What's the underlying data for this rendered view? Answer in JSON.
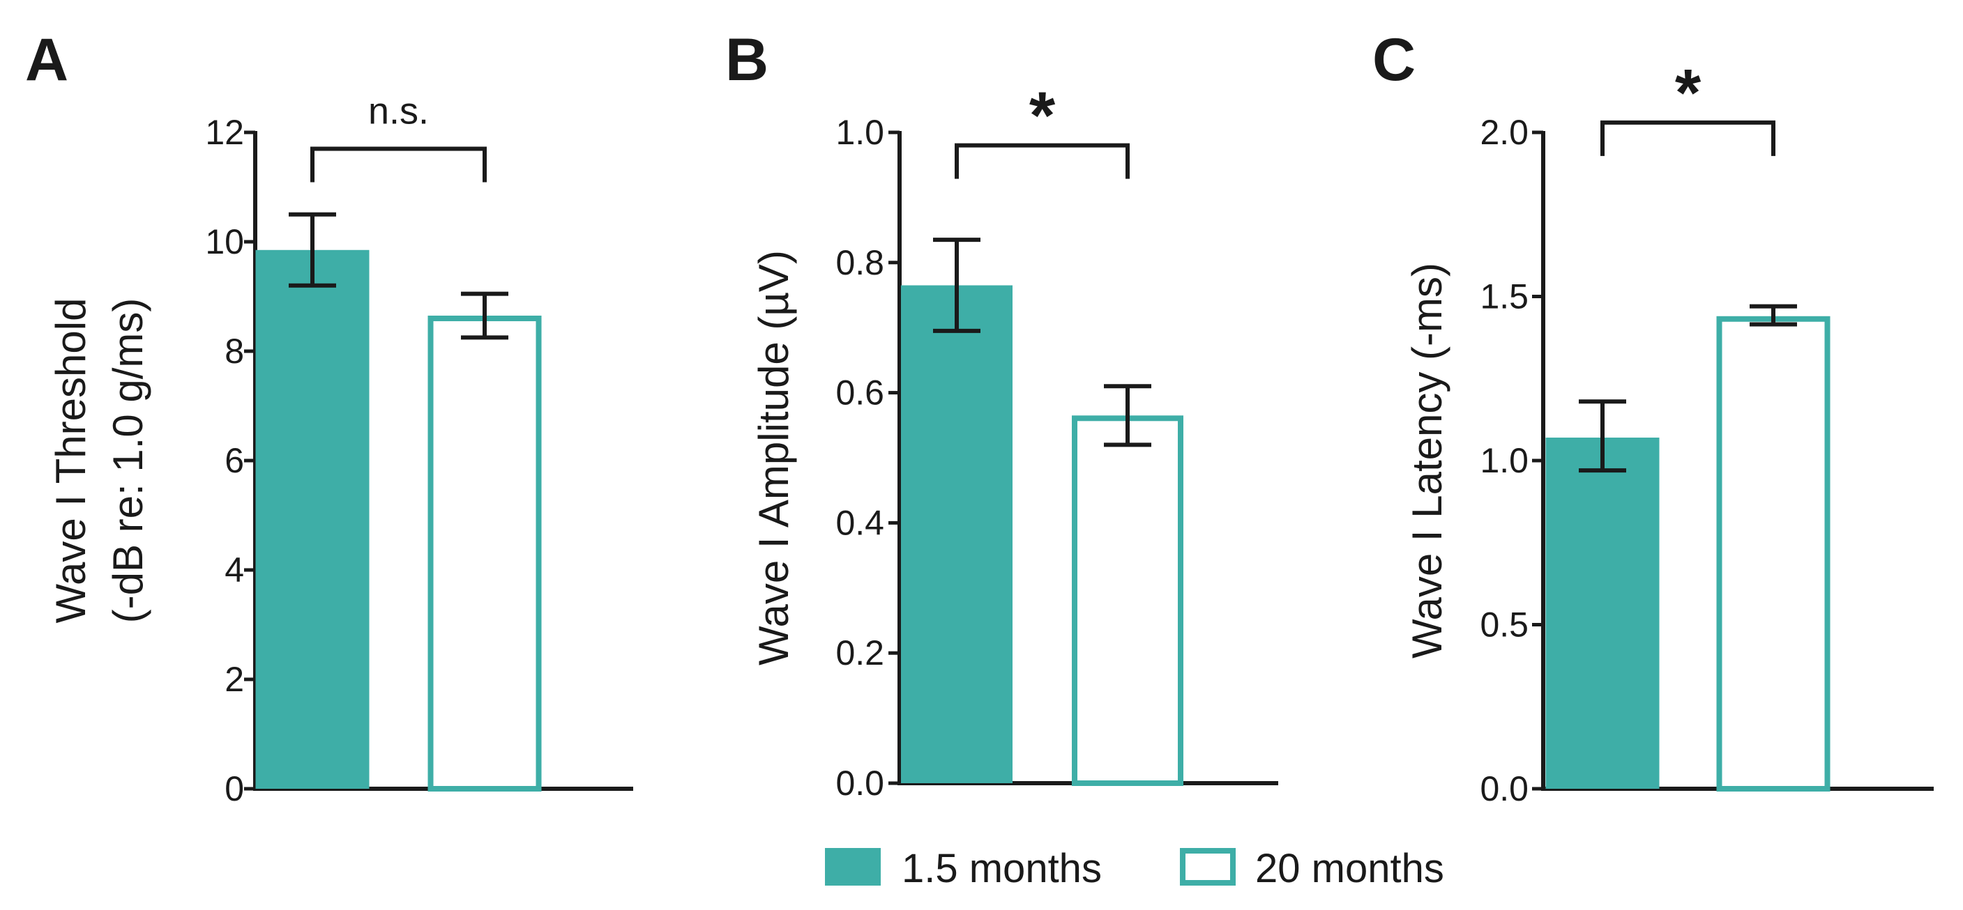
{
  "colors": {
    "teal": "#3eaea7",
    "ink": "#1a1a1a",
    "background": "#ffffff"
  },
  "legend": {
    "items": [
      {
        "label": "1.5 months",
        "style": "filled"
      },
      {
        "label": "20 months",
        "style": "open"
      }
    ]
  },
  "chart_data": [
    {
      "type": "bar",
      "panel": "A",
      "ylabel_line1": "Wave I Threshold",
      "ylabel_line2": "(-dB re: 1.0 g/ms)",
      "ylim": [
        0,
        12
      ],
      "ticks": [
        {
          "value": 0,
          "label": "0"
        },
        {
          "value": 2,
          "label": "2"
        },
        {
          "value": 4,
          "label": "4"
        },
        {
          "value": 6,
          "label": "6"
        },
        {
          "value": 8,
          "label": "8"
        },
        {
          "value": 10,
          "label": "10"
        },
        {
          "value": 12,
          "label": "12"
        }
      ],
      "categories": [
        "1.5 months",
        "20 months"
      ],
      "bars": [
        {
          "group": "1.5 months",
          "value": 9.85,
          "err_low": 9.2,
          "err_high": 10.5
        },
        {
          "group": "20 months",
          "value": 8.65,
          "err_low": 8.25,
          "err_high": 9.05
        }
      ],
      "significance": {
        "label": "n.s.",
        "bracket_level": 11.7
      }
    },
    {
      "type": "bar",
      "panel": "B",
      "ylabel_line1": "Wave I Amplitude (µV)",
      "ylabel_line2": "",
      "ylim": [
        0,
        1.0
      ],
      "ticks": [
        {
          "value": 0,
          "label": "0.0"
        },
        {
          "value": 0.2,
          "label": "0.2"
        },
        {
          "value": 0.4,
          "label": "0.4"
        },
        {
          "value": 0.6,
          "label": "0.6"
        },
        {
          "value": 0.8,
          "label": "0.8"
        },
        {
          "value": 1.0,
          "label": "1.0"
        }
      ],
      "categories": [
        "1.5 months",
        "20 months"
      ],
      "bars": [
        {
          "group": "1.5 months",
          "value": 0.765,
          "err_low": 0.695,
          "err_high": 0.835
        },
        {
          "group": "20 months",
          "value": 0.565,
          "err_low": 0.52,
          "err_high": 0.61
        }
      ],
      "significance": {
        "label": "*",
        "bracket_level": 0.98
      }
    },
    {
      "type": "bar",
      "panel": "C",
      "ylabel_line1": "Wave I Latency (-ms)",
      "ylabel_line2": "",
      "ylim": [
        0,
        2.0
      ],
      "ticks": [
        {
          "value": 0,
          "label": "0.0"
        },
        {
          "value": 0.5,
          "label": "0.5"
        },
        {
          "value": 1.0,
          "label": "1.0"
        },
        {
          "value": 1.5,
          "label": "1.5"
        },
        {
          "value": 2.0,
          "label": "2.0"
        }
      ],
      "categories": [
        "1.5 months",
        "20 months"
      ],
      "bars": [
        {
          "group": "1.5 months",
          "value": 1.07,
          "err_low": 0.97,
          "err_high": 1.18
        },
        {
          "group": "20 months",
          "value": 1.44,
          "err_low": 1.415,
          "err_high": 1.47
        }
      ],
      "significance": {
        "label": "*",
        "bracket_level": 2.03
      }
    }
  ]
}
